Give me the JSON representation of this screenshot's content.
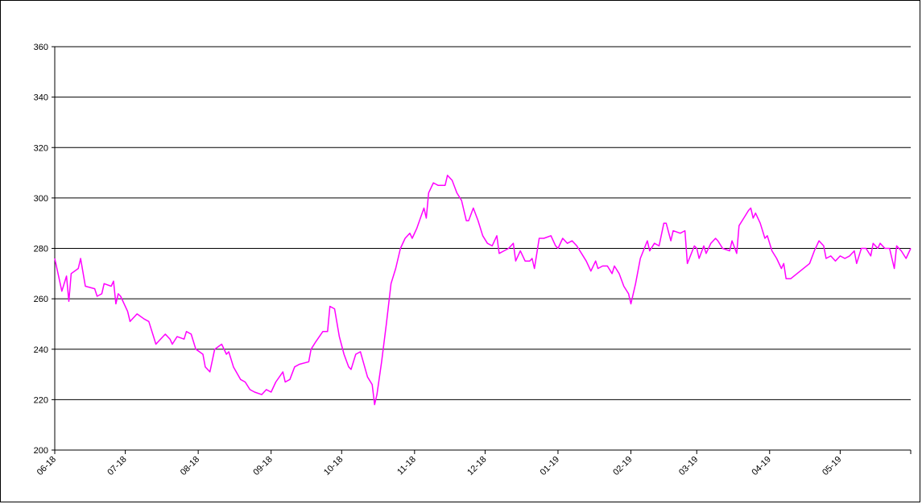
{
  "chart_data": {
    "type": "line",
    "title": "",
    "xlabel": "",
    "ylabel": "",
    "ylim": [
      200,
      360
    ],
    "yticks": [
      200,
      220,
      240,
      260,
      280,
      300,
      320,
      340,
      360
    ],
    "grid": true,
    "legend": "none",
    "x_tick_labels": [
      "06-18",
      "07-18",
      "08-18",
      "09-18",
      "10-18",
      "11-18",
      "12-18",
      "01-19",
      "02-19",
      "03-19",
      "04-19",
      "05-19"
    ],
    "x_tick_dates": [
      "2018-06-01",
      "2018-07-01",
      "2018-08-01",
      "2018-09-01",
      "2018-10-01",
      "2018-11-01",
      "2018-12-01",
      "2019-01-01",
      "2019-02-01",
      "2019-03-01",
      "2019-04-01",
      "2019-05-01"
    ],
    "xlim": [
      "2018-06-01",
      "2019-05-31"
    ],
    "series": [
      {
        "color": "#ff00ff",
        "points": [
          [
            "2018-06-01",
            276
          ],
          [
            "2018-06-04",
            263
          ],
          [
            "2018-06-06",
            269
          ],
          [
            "2018-06-07",
            259
          ],
          [
            "2018-06-08",
            270
          ],
          [
            "2018-06-11",
            272
          ],
          [
            "2018-06-12",
            276
          ],
          [
            "2018-06-14",
            265
          ],
          [
            "2018-06-18",
            264
          ],
          [
            "2018-06-19",
            261
          ],
          [
            "2018-06-21",
            262
          ],
          [
            "2018-06-22",
            266
          ],
          [
            "2018-06-25",
            265
          ],
          [
            "2018-06-26",
            267
          ],
          [
            "2018-06-27",
            258
          ],
          [
            "2018-06-28",
            262
          ],
          [
            "2018-06-29",
            261
          ],
          [
            "2018-07-02",
            255
          ],
          [
            "2018-07-03",
            251
          ],
          [
            "2018-07-06",
            254
          ],
          [
            "2018-07-09",
            252
          ],
          [
            "2018-07-11",
            251
          ],
          [
            "2018-07-13",
            245
          ],
          [
            "2018-07-14",
            242
          ],
          [
            "2018-07-16",
            244
          ],
          [
            "2018-07-18",
            246
          ],
          [
            "2018-07-20",
            244
          ],
          [
            "2018-07-21",
            242
          ],
          [
            "2018-07-23",
            245
          ],
          [
            "2018-07-26",
            244
          ],
          [
            "2018-07-27",
            247
          ],
          [
            "2018-07-29",
            246
          ],
          [
            "2018-07-31",
            240
          ],
          [
            "2018-08-03",
            238
          ],
          [
            "2018-08-04",
            233
          ],
          [
            "2018-08-06",
            231
          ],
          [
            "2018-08-08",
            240
          ],
          [
            "2018-08-11",
            242
          ],
          [
            "2018-08-13",
            238
          ],
          [
            "2018-08-14",
            239
          ],
          [
            "2018-08-16",
            233
          ],
          [
            "2018-08-19",
            228
          ],
          [
            "2018-08-21",
            227
          ],
          [
            "2018-08-23",
            224
          ],
          [
            "2018-08-25",
            223
          ],
          [
            "2018-08-28",
            222
          ],
          [
            "2018-08-30",
            224
          ],
          [
            "2018-09-01",
            223
          ],
          [
            "2018-09-03",
            227
          ],
          [
            "2018-09-06",
            231
          ],
          [
            "2018-09-07",
            227
          ],
          [
            "2018-09-09",
            228
          ],
          [
            "2018-09-11",
            233
          ],
          [
            "2018-09-13",
            234
          ],
          [
            "2018-09-17",
            235
          ],
          [
            "2018-09-18",
            240
          ],
          [
            "2018-09-20",
            243
          ],
          [
            "2018-09-23",
            247
          ],
          [
            "2018-09-25",
            247
          ],
          [
            "2018-09-26",
            257
          ],
          [
            "2018-09-28",
            256
          ],
          [
            "2018-09-30",
            245
          ],
          [
            "2018-10-02",
            238
          ],
          [
            "2018-10-04",
            233
          ],
          [
            "2018-10-05",
            232
          ],
          [
            "2018-10-07",
            238
          ],
          [
            "2018-10-09",
            239
          ],
          [
            "2018-10-12",
            229
          ],
          [
            "2018-10-14",
            226
          ],
          [
            "2018-10-15",
            218
          ],
          [
            "2018-10-16",
            222
          ],
          [
            "2018-10-18",
            235
          ],
          [
            "2018-10-20",
            250
          ],
          [
            "2018-10-22",
            266
          ],
          [
            "2018-10-24",
            272
          ],
          [
            "2018-10-26",
            280
          ],
          [
            "2018-10-28",
            284
          ],
          [
            "2018-10-30",
            286
          ],
          [
            "2018-10-31",
            284
          ],
          [
            "2018-11-02",
            288
          ],
          [
            "2018-11-05",
            296
          ],
          [
            "2018-11-06",
            292
          ],
          [
            "2018-11-07",
            302
          ],
          [
            "2018-11-09",
            306
          ],
          [
            "2018-11-11",
            305
          ],
          [
            "2018-11-14",
            305
          ],
          [
            "2018-11-15",
            309
          ],
          [
            "2018-11-17",
            307
          ],
          [
            "2018-11-19",
            302
          ],
          [
            "2018-11-21",
            299
          ],
          [
            "2018-11-23",
            291
          ],
          [
            "2018-11-24",
            291
          ],
          [
            "2018-11-26",
            296
          ],
          [
            "2018-11-28",
            291
          ],
          [
            "2018-11-30",
            285
          ],
          [
            "2018-12-02",
            282
          ],
          [
            "2018-12-04",
            281
          ],
          [
            "2018-12-06",
            285
          ],
          [
            "2018-12-07",
            278
          ],
          [
            "2018-12-09",
            279
          ],
          [
            "2018-12-11",
            280
          ],
          [
            "2018-12-13",
            282
          ],
          [
            "2018-12-14",
            275
          ],
          [
            "2018-12-16",
            279
          ],
          [
            "2018-12-18",
            275
          ],
          [
            "2018-12-20",
            275
          ],
          [
            "2018-12-21",
            276
          ],
          [
            "2018-12-22",
            272
          ],
          [
            "2018-12-24",
            284
          ],
          [
            "2018-12-26",
            284
          ],
          [
            "2018-12-29",
            285
          ],
          [
            "2018-12-31",
            281
          ],
          [
            "2019-01-01",
            280
          ],
          [
            "2019-01-03",
            284
          ],
          [
            "2019-01-05",
            282
          ],
          [
            "2019-01-07",
            283
          ],
          [
            "2019-01-09",
            281
          ],
          [
            "2019-01-11",
            278
          ],
          [
            "2019-01-13",
            275
          ],
          [
            "2019-01-15",
            271
          ],
          [
            "2019-01-17",
            275
          ],
          [
            "2019-01-18",
            272
          ],
          [
            "2019-01-20",
            273
          ],
          [
            "2019-01-22",
            273
          ],
          [
            "2019-01-24",
            270
          ],
          [
            "2019-01-25",
            273
          ],
          [
            "2019-01-27",
            270
          ],
          [
            "2019-01-29",
            265
          ],
          [
            "2019-01-31",
            262
          ],
          [
            "2019-02-01",
            258
          ],
          [
            "2019-02-03",
            266
          ],
          [
            "2019-02-05",
            276
          ],
          [
            "2019-02-08",
            283
          ],
          [
            "2019-02-09",
            279
          ],
          [
            "2019-02-11",
            282
          ],
          [
            "2019-02-13",
            281
          ],
          [
            "2019-02-15",
            290
          ],
          [
            "2019-02-16",
            290
          ],
          [
            "2019-02-18",
            283
          ],
          [
            "2019-02-19",
            287
          ],
          [
            "2019-02-22",
            286
          ],
          [
            "2019-02-24",
            287
          ],
          [
            "2019-02-25",
            274
          ],
          [
            "2019-02-28",
            281
          ],
          [
            "2019-03-01",
            280
          ],
          [
            "2019-03-02",
            276
          ],
          [
            "2019-03-04",
            281
          ],
          [
            "2019-03-05",
            278
          ],
          [
            "2019-03-07",
            282
          ],
          [
            "2019-03-09",
            284
          ],
          [
            "2019-03-10",
            283
          ],
          [
            "2019-03-12",
            280
          ],
          [
            "2019-03-15",
            279
          ],
          [
            "2019-03-16",
            283
          ],
          [
            "2019-03-18",
            278
          ],
          [
            "2019-03-19",
            289
          ],
          [
            "2019-03-21",
            292
          ],
          [
            "2019-03-23",
            295
          ],
          [
            "2019-03-24",
            296
          ],
          [
            "2019-03-25",
            292
          ],
          [
            "2019-03-26",
            294
          ],
          [
            "2019-03-28",
            290
          ],
          [
            "2019-03-30",
            284
          ],
          [
            "2019-03-31",
            285
          ],
          [
            "2019-04-02",
            279
          ],
          [
            "2019-04-04",
            276
          ],
          [
            "2019-04-06",
            272
          ],
          [
            "2019-04-07",
            274
          ],
          [
            "2019-04-08",
            268
          ],
          [
            "2019-04-10",
            268
          ],
          [
            "2019-04-18",
            274
          ],
          [
            "2019-04-20",
            279
          ],
          [
            "2019-04-22",
            283
          ],
          [
            "2019-04-24",
            281
          ],
          [
            "2019-04-25",
            276
          ],
          [
            "2019-04-27",
            277
          ],
          [
            "2019-04-29",
            275
          ],
          [
            "2019-05-01",
            277
          ],
          [
            "2019-05-03",
            276
          ],
          [
            "2019-05-05",
            277
          ],
          [
            "2019-05-07",
            279
          ],
          [
            "2019-05-08",
            274
          ],
          [
            "2019-05-10",
            280
          ],
          [
            "2019-05-12",
            280
          ],
          [
            "2019-05-14",
            277
          ],
          [
            "2019-05-15",
            282
          ],
          [
            "2019-05-17",
            280
          ],
          [
            "2019-05-18",
            282
          ],
          [
            "2019-05-20",
            280
          ],
          [
            "2019-05-22",
            280
          ],
          [
            "2019-05-24",
            272
          ],
          [
            "2019-05-25",
            281
          ],
          [
            "2019-05-27",
            279
          ],
          [
            "2019-05-29",
            276
          ],
          [
            "2019-05-31",
            280
          ]
        ]
      }
    ]
  }
}
